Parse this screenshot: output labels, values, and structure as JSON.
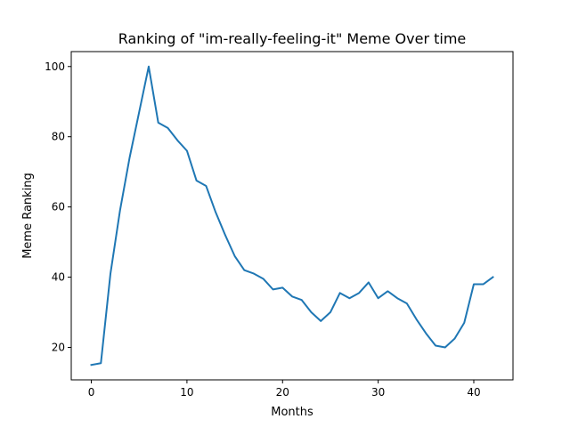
{
  "chart_data": {
    "type": "line",
    "title": "Ranking of \"im-really-feeling-it\" Meme Over time",
    "xlabel": "Months",
    "ylabel": "Meme Ranking",
    "xlim": [
      -2.1,
      44.1
    ],
    "ylim": [
      10.75,
      104.25
    ],
    "x_ticks": [
      0,
      10,
      20,
      30,
      40
    ],
    "y_ticks": [
      20,
      40,
      60,
      80,
      100
    ],
    "grid": false,
    "legend": "none",
    "line_color": "#1f77b4",
    "series": [
      {
        "x": [
          0,
          1,
          2,
          3,
          4,
          5,
          6,
          7,
          8,
          9,
          10,
          11,
          12,
          13,
          14,
          15,
          16,
          17,
          18,
          19,
          20,
          21,
          22,
          23,
          24,
          25,
          26,
          27,
          28,
          29,
          30,
          31,
          32,
          33,
          34,
          35,
          36,
          37,
          38,
          39,
          40,
          41,
          42
        ],
        "values": [
          15,
          15.5,
          41,
          59,
          74,
          87,
          100,
          84,
          82.5,
          79,
          76,
          67.5,
          66,
          58.5,
          52,
          46,
          42,
          41,
          39.5,
          36.5,
          37,
          34.5,
          33.5,
          30,
          27.5,
          30,
          35.5,
          34,
          35.5,
          38.5,
          34,
          36,
          34,
          32.5,
          28,
          24,
          20.5,
          20,
          22.5,
          27,
          38,
          38,
          40
        ]
      }
    ]
  }
}
